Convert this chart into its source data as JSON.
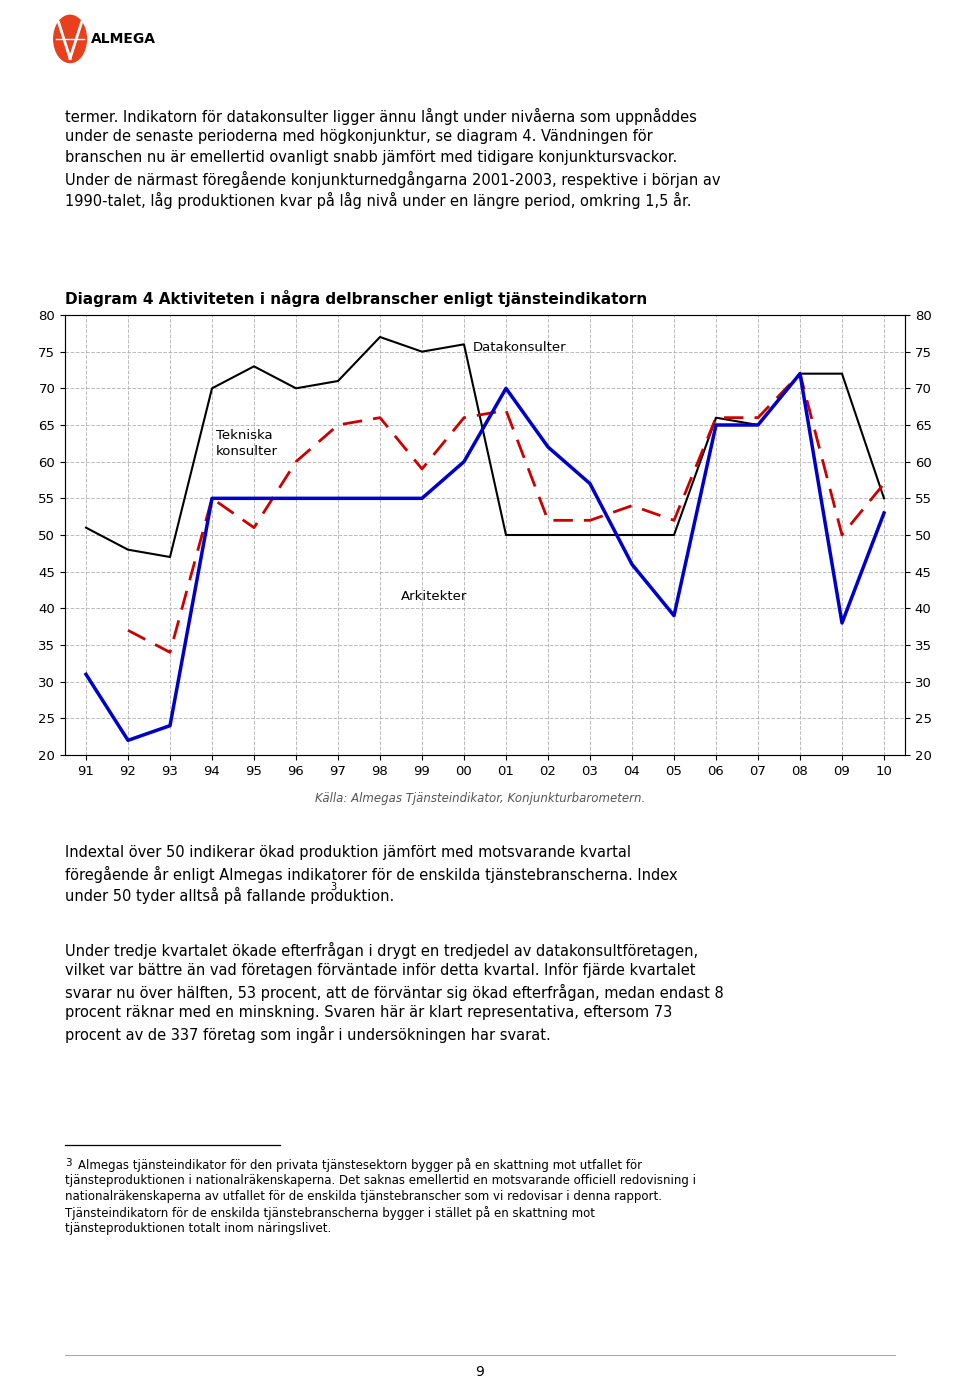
{
  "title": "Diagram 4 Aktiviteten i några delbranscher enligt tjänsteindikatorn",
  "caption": "Källa: Almegas Tjänsteindikator, Konjunkturbarometern.",
  "year_labels": [
    "91",
    "92",
    "93",
    "94",
    "95",
    "96",
    "97",
    "98",
    "99",
    "00",
    "01",
    "02",
    "03",
    "04",
    "05",
    "06",
    "07",
    "08",
    "09",
    "10"
  ],
  "ylim": [
    20,
    80
  ],
  "yticks": [
    20,
    25,
    30,
    35,
    40,
    45,
    50,
    55,
    60,
    65,
    70,
    75,
    80
  ],
  "datakonsulter": [
    51,
    48,
    47,
    70,
    73,
    70,
    71,
    77,
    75,
    76,
    50,
    50,
    50,
    50,
    50,
    66,
    65,
    72,
    72,
    55
  ],
  "tekniska_konsulter": [
    null,
    37,
    34,
    55,
    51,
    60,
    65,
    66,
    59,
    66,
    67,
    52,
    52,
    54,
    52,
    66,
    66,
    72,
    50,
    57
  ],
  "arkitekter": [
    31,
    22,
    24,
    55,
    55,
    55,
    55,
    55,
    55,
    60,
    70,
    62,
    57,
    46,
    39,
    65,
    65,
    72,
    38,
    53
  ],
  "header_lines": [
    "termer. Indikatorn för datakonsulter ligger ännu långt under nivåerna som uppnåddes",
    "under de senaste perioderna med högkonjunktur, se diagram 4. Vändningen för",
    "branschen nu är emellertid ovanligt snabb jämfört med tidigare konjunktursvackor.",
    "Under de närmast föregående konjunkturnedgångarna 2001-2003, respektive i början av",
    "1990-talet, låg produktionen kvar på låg nivå under en längre period, omkring 1,5 år."
  ],
  "footer_para1_lines": [
    "Indextal över 50 indikerar ökad produktion jämfört med motsvarande kvartal",
    "föregående år enligt Almegas indikatorer för de enskilda tjänstebranscherna. Index",
    "under 50 tyder alltså på fallande produktion."
  ],
  "footer_para2_lines": [
    "Under tredje kvartalet ökade efterfrågan i drygt en tredjedel av datakonsultföretagen,",
    "vilket var bättre än vad företagen förväntade inför detta kvartal. Inför fjärde kvartalet",
    "svarar nu över hälften, 53 procent, att de förväntar sig ökad efterfrågan, medan endast 8",
    "procent räknar med en minskning. Svaren här är klart representativa, eftersom 73",
    "procent av de 337 företag som ingår i undersökningen har svarat."
  ],
  "footnote_lines": [
    "Almegas tjänsteindikator för den privata tjänstesektorn bygger på en skattning mot utfallet för",
    "tjänsteproduktionen i nationalräkenskaperna. Det saknas emellertid en motsvarande officiell redovisning i",
    "nationalräkenskaperna av utfallet för de enskilda tjänstebranscher som vi redovisar i denna rapport.",
    "Tjänsteindikatorn för de enskilda tjänstebranscherna bygger i stället på en skattning mot",
    "tjänsteproduktionen totalt inom näringslivet."
  ],
  "page_number": "9",
  "logo_color": "#e8401c",
  "line_dk_color": "#000000",
  "line_tk_color": "#cc0000",
  "line_ark_color": "#0000cc",
  "grid_color": "#aaaaaa"
}
